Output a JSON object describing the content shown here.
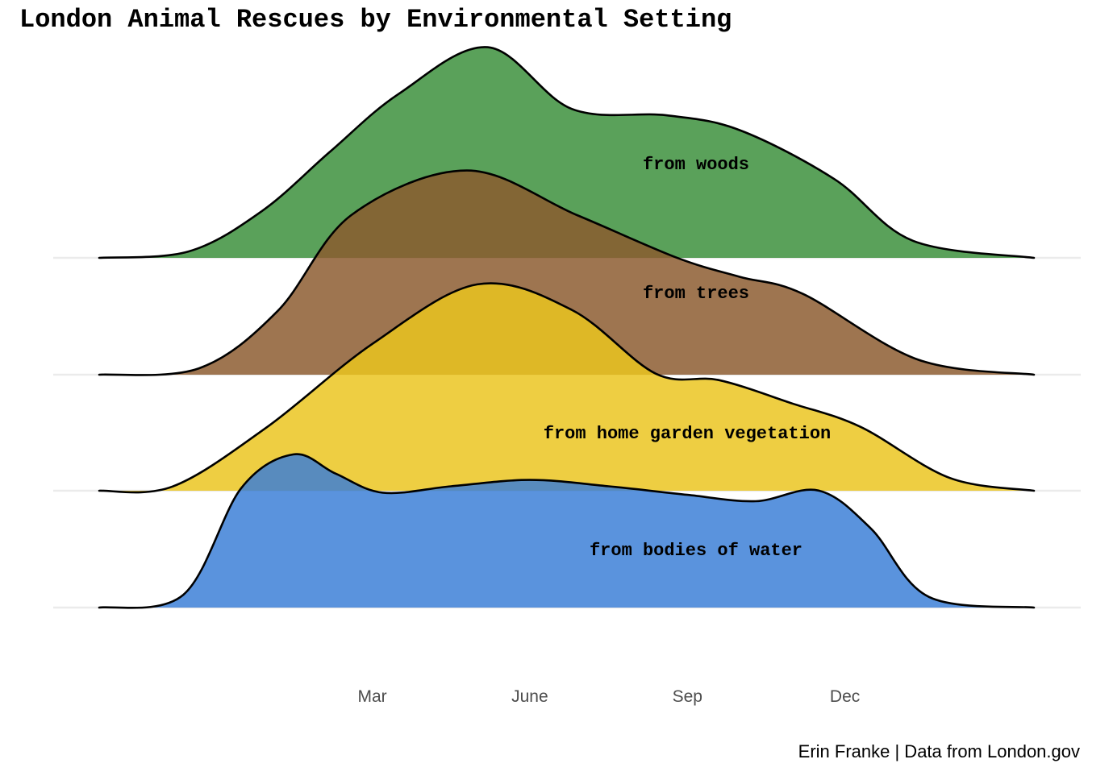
{
  "chart_data": {
    "type": "ridgeline",
    "title": "London Animal Rescues by Environmental Setting",
    "caption": "Erin Franke | Data from London.gov",
    "x_ticks": [
      {
        "label": "Mar",
        "month": 3
      },
      {
        "label": "June",
        "month": 6
      },
      {
        "label": "Sep",
        "month": 9
      },
      {
        "label": "Dec",
        "month": 12
      }
    ],
    "xlim": [
      -2.2,
      15.6
    ],
    "grid": "horizontal baselines only",
    "series": [
      {
        "name": "from woods",
        "color": "#3a8f3a",
        "relative_density": [
          [
            -2.2,
            0
          ],
          [
            -0.5,
            0.03
          ],
          [
            0.9,
            0.22
          ],
          [
            2.2,
            0.5
          ],
          [
            3.5,
            0.77
          ],
          [
            5.2,
            0.99
          ],
          [
            6.8,
            0.7
          ],
          [
            8.6,
            0.67
          ],
          [
            10,
            0.6
          ],
          [
            11.8,
            0.37
          ],
          [
            13.3,
            0.08
          ],
          [
            15.6,
            0
          ]
        ]
      },
      {
        "name": "from trees",
        "color": "#8b5a2e",
        "relative_density": [
          [
            -2.2,
            0
          ],
          [
            -0.3,
            0.03
          ],
          [
            1.2,
            0.3
          ],
          [
            2.6,
            0.75
          ],
          [
            4.8,
            0.96
          ],
          [
            6.9,
            0.75
          ],
          [
            8.8,
            0.55
          ],
          [
            10,
            0.46
          ],
          [
            11.2,
            0.38
          ],
          [
            13.4,
            0.07
          ],
          [
            15.6,
            0
          ]
        ]
      },
      {
        "name": "from home garden vegetation",
        "color": "#ebc51e",
        "relative_density": [
          [
            -2.2,
            0
          ],
          [
            -0.8,
            0.02
          ],
          [
            1.0,
            0.3
          ],
          [
            3.0,
            0.69
          ],
          [
            5.0,
            0.97
          ],
          [
            6.8,
            0.85
          ],
          [
            8.4,
            0.55
          ],
          [
            9.6,
            0.52
          ],
          [
            11.0,
            0.41
          ],
          [
            12.3,
            0.3
          ],
          [
            14.0,
            0.06
          ],
          [
            15.6,
            0
          ]
        ]
      },
      {
        "name": "from bodies of water",
        "color": "#3a7ed6",
        "relative_density": [
          [
            -2.2,
            0
          ],
          [
            -0.6,
            0.06
          ],
          [
            0.5,
            0.56
          ],
          [
            1.5,
            0.72
          ],
          [
            2.3,
            0.63
          ],
          [
            3.2,
            0.54
          ],
          [
            4.5,
            0.57
          ],
          [
            6,
            0.6
          ],
          [
            7.5,
            0.57
          ],
          [
            9,
            0.53
          ],
          [
            10.3,
            0.5
          ],
          [
            11.5,
            0.55
          ],
          [
            12.5,
            0.37
          ],
          [
            13.6,
            0.05
          ],
          [
            15.6,
            0
          ]
        ]
      }
    ]
  }
}
